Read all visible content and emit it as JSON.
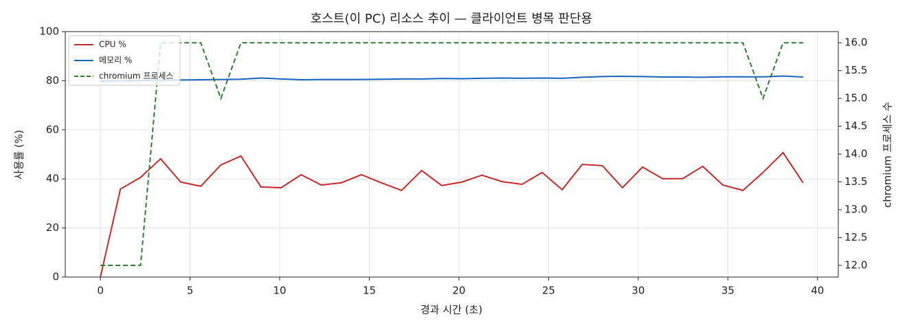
{
  "chart_data": {
    "type": "line",
    "title": "호스트(이 PC) 리소스 추이 — 클라이언트 병목 판단용",
    "xlabel": "경과 시간 (초)",
    "ylabel": "사용률 (%)",
    "y2label": "chromium 프로세스 수",
    "x": [
      0,
      1.12,
      2.24,
      3.36,
      4.48,
      5.6,
      6.72,
      7.84,
      8.96,
      10.08,
      11.2,
      12.32,
      13.44,
      14.56,
      15.68,
      16.8,
      17.92,
      19.04,
      20.16,
      21.28,
      22.4,
      23.52,
      24.64,
      25.76,
      26.88,
      28.0,
      29.12,
      30.24,
      31.36,
      32.48,
      33.6,
      34.72,
      35.84,
      36.96,
      38.08,
      39.2
    ],
    "series": [
      {
        "name": "CPU %",
        "color": "#c62828",
        "axis": "y",
        "linestyle": "solid",
        "values": [
          0,
          35.9,
          40.6,
          48.2,
          38.7,
          37.0,
          45.7,
          49.3,
          36.7,
          36.4,
          41.7,
          37.5,
          38.4,
          41.7,
          38.4,
          35.3,
          43.4,
          37.3,
          38.7,
          41.5,
          38.9,
          37.8,
          42.6,
          35.6,
          45.9,
          45.4,
          36.4,
          44.8,
          40.1,
          40.1,
          45.1,
          37.5,
          35.3,
          42.6,
          50.7,
          38.4
        ]
      },
      {
        "name": "메모리 %",
        "color": "#1565c0",
        "axis": "y",
        "linestyle": "solid",
        "values": [
          79.8,
          80.0,
          80.1,
          80.2,
          80.3,
          80.4,
          80.5,
          80.6,
          81.1,
          80.7,
          80.4,
          80.5,
          80.5,
          80.5,
          80.6,
          80.7,
          80.7,
          80.9,
          80.8,
          81.0,
          81.1,
          81.0,
          81.1,
          81.0,
          81.4,
          81.7,
          81.8,
          81.7,
          81.5,
          81.5,
          81.4,
          81.6,
          81.6,
          81.6,
          81.9,
          81.5
        ]
      },
      {
        "name": "chromium 프로세스",
        "color": "#2e7d32",
        "axis": "y2",
        "linestyle": "dashed",
        "values": [
          12,
          12,
          12,
          16,
          16,
          16,
          15,
          16,
          16,
          16,
          16,
          16,
          16,
          16,
          16,
          16,
          16,
          16,
          16,
          16,
          16,
          16,
          16,
          16,
          16,
          16,
          16,
          16,
          16,
          16,
          16,
          16,
          16,
          15,
          16,
          16
        ]
      }
    ],
    "xlim": [
      -1.96,
      41.16
    ],
    "xticks": [
      0,
      5,
      10,
      15,
      20,
      25,
      30,
      35,
      40
    ],
    "ylim": [
      0,
      100
    ],
    "yticks": [
      0,
      20,
      40,
      60,
      80,
      100
    ],
    "y2lim": [
      11.79,
      16.2
    ],
    "y2ticks": [
      {
        "value": 12,
        "label": "12.0"
      },
      {
        "value": 12.5,
        "label": "12.5"
      },
      {
        "value": 13,
        "label": "13.0"
      },
      {
        "value": 13.5,
        "label": "13.5"
      },
      {
        "value": 14,
        "label": "14.0"
      },
      {
        "value": 14.5,
        "label": "14.5"
      },
      {
        "value": 15,
        "label": "15.0"
      },
      {
        "value": 15.5,
        "label": "15.5"
      },
      {
        "value": 16,
        "label": "16.0"
      }
    ],
    "grid": true,
    "legend": "upper-left"
  }
}
